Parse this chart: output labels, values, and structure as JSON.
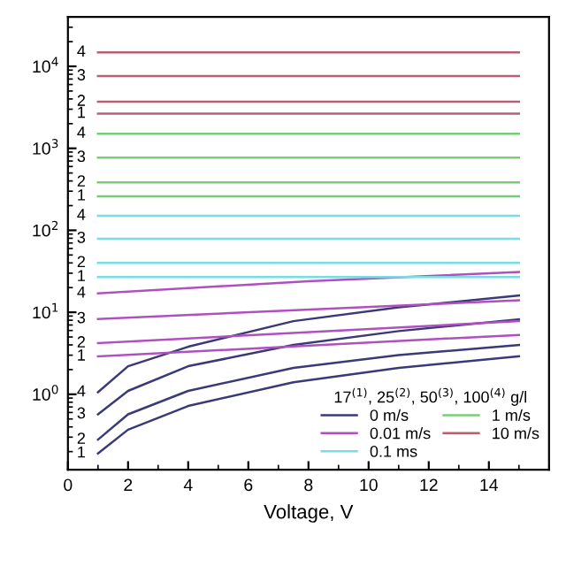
{
  "chart_data": {
    "type": "line",
    "xlabel": "Voltage, V",
    "legend_title": "17$^{(1)}$, 25$^{(2)}$, 50$^{(3)}$, 100$^{(4)}$ g/l",
    "xlim": [
      0,
      16
    ],
    "xticks": [
      0,
      2,
      4,
      6,
      8,
      10,
      12,
      14
    ],
    "ylim": [
      0.12,
      40000
    ],
    "yticks": [
      {
        "value": 1,
        "label": "10$^{0}$"
      },
      {
        "value": 10,
        "label": "10$^{1}$"
      },
      {
        "value": 100,
        "label": "10$^{2}$"
      },
      {
        "value": 1000,
        "label": "10$^{3}$"
      },
      {
        "value": 10000,
        "label": "10$^{4}$"
      }
    ],
    "log": "y",
    "grid": false,
    "legend": "bottom right",
    "marker": "none",
    "line_style": "solid",
    "series": [
      {
        "name": "0 m/s",
        "color": "#3a3a78",
        "x": [
          1,
          2,
          4,
          7.5,
          11,
          15
        ],
        "values": [
          0.19,
          0.37,
          0.72,
          1.4,
          2.1,
          2.9
        ]
      },
      {
        "color": "#3a3a78",
        "x": [
          1,
          2,
          4,
          7.5,
          11,
          15
        ],
        "values": [
          0.28,
          0.57,
          1.1,
          2.1,
          3.0,
          4.0
        ]
      },
      {
        "color": "#3a3a78",
        "x": [
          1,
          2,
          4,
          7.5,
          11,
          15
        ],
        "values": [
          0.57,
          1.1,
          2.2,
          4.0,
          5.9,
          8.2
        ]
      },
      {
        "color": "#3a3a78",
        "x": [
          1,
          2,
          4,
          7.5,
          11,
          15
        ],
        "values": [
          1.06,
          2.2,
          3.8,
          7.8,
          11.5,
          16
        ]
      },
      {
        "name": "0.01 m/s",
        "color": "#b050c0",
        "x": [
          1,
          15
        ],
        "values": [
          2.9,
          5.3
        ]
      },
      {
        "color": "#b050c0",
        "x": [
          1,
          15
        ],
        "values": [
          4.2,
          7.8
        ]
      },
      {
        "color": "#b050c0",
        "x": [
          1,
          15
        ],
        "values": [
          8.3,
          14
        ]
      },
      {
        "color": "#b050c0",
        "x": [
          1,
          8,
          15
        ],
        "values": [
          17,
          24,
          31
        ]
      },
      {
        "name": "0.1 ms",
        "color": "#78dce4",
        "x": [
          1,
          15
        ],
        "values": [
          27,
          27
        ]
      },
      {
        "color": "#78dce4",
        "x": [
          1,
          15
        ],
        "values": [
          40,
          40
        ]
      },
      {
        "color": "#78dce4",
        "x": [
          1,
          15
        ],
        "values": [
          79,
          79
        ]
      },
      {
        "color": "#78dce4",
        "x": [
          1,
          15
        ],
        "values": [
          150,
          150
        ]
      },
      {
        "name": "1 m/s",
        "color": "#78cc78",
        "x": [
          1,
          15
        ],
        "values": [
          260,
          260
        ]
      },
      {
        "color": "#78cc78",
        "x": [
          1,
          15
        ],
        "values": [
          385,
          385
        ]
      },
      {
        "color": "#78cc78",
        "x": [
          1,
          15
        ],
        "values": [
          770,
          770
        ]
      },
      {
        "color": "#78cc78",
        "x": [
          1,
          15
        ],
        "values": [
          1510,
          1510
        ]
      },
      {
        "name": "10 m/s",
        "color": "#b86070",
        "x": [
          1,
          15
        ],
        "values": [
          2650,
          2650
        ]
      },
      {
        "color": "#b86070",
        "x": [
          1,
          15
        ],
        "values": [
          3700,
          3700
        ]
      },
      {
        "color": "#b86070",
        "x": [
          1,
          15
        ],
        "values": [
          7600,
          7600
        ]
      },
      {
        "color": "#b86070",
        "x": [
          1,
          15
        ],
        "values": [
          14800,
          14800
        ]
      }
    ],
    "annotations": [
      "1",
      "2",
      "3",
      "4",
      "1",
      "2",
      "3",
      "4",
      "1",
      "2",
      "3",
      "4",
      "1",
      "2",
      "3",
      "4",
      "1",
      "2",
      "3",
      "4"
    ]
  }
}
